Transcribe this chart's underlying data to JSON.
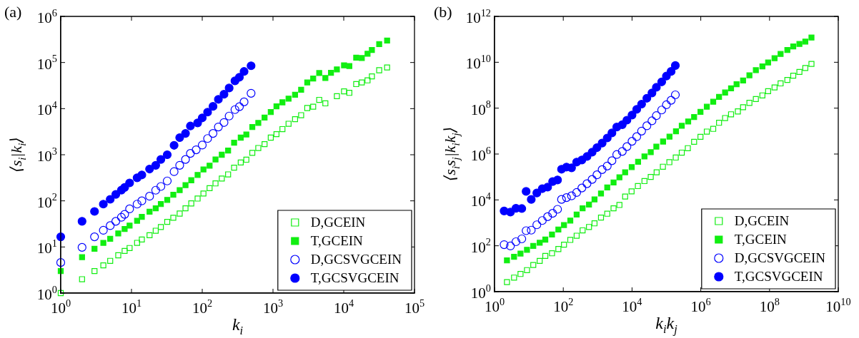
{
  "chart_data": [
    {
      "type": "scatter",
      "title": "(a)",
      "xlabel": "k$_{i}$",
      "ylabel": "⟨s$_{i}$|k$_{i}$⟩",
      "log": "xy",
      "grid": false,
      "legend": "bottom right",
      "xlim": [
        1,
        100000
      ],
      "ylim": [
        1,
        1000000
      ],
      "xticks": [
        {
          "value": 1,
          "label": "10$^{0}$"
        },
        {
          "value": 10,
          "label": "10$^{1}$"
        },
        {
          "value": 100,
          "label": "10$^{2}$"
        },
        {
          "value": 1000,
          "label": "10$^{3}$"
        },
        {
          "value": 10000,
          "label": "10$^{4}$"
        },
        {
          "value": 100000,
          "label": "10$^{5}$"
        }
      ],
      "yticks": [
        {
          "value": 1,
          "label": "10$^{0}$"
        },
        {
          "value": 10,
          "label": "10$^{1}$"
        },
        {
          "value": 100,
          "label": "10$^{2}$"
        },
        {
          "value": 1000,
          "label": "10$^{3}$"
        },
        {
          "value": 10000,
          "label": "10$^{4}$"
        },
        {
          "value": 100000,
          "label": "10$^{5}$"
        },
        {
          "value": 1000000,
          "label": "10$^{6}$"
        }
      ],
      "series": [
        {
          "name": "D,GCEIN",
          "color": "#11ee11",
          "marker": "square",
          "x": [
            1,
            2,
            3,
            4,
            5,
            6.5,
            8,
            9.4,
            12,
            14,
            18,
            22,
            26,
            32,
            39,
            48,
            58,
            70,
            86,
            104,
            127,
            154,
            189,
            232,
            282,
            350,
            420,
            510,
            620,
            760,
            930,
            1120,
            1360,
            1660,
            2050,
            2500,
            3050,
            3700,
            4500,
            5500,
            8000,
            10100,
            12000,
            15000,
            18000,
            21700,
            25000,
            31700,
            41000
          ],
          "values": [
            1,
            2,
            3,
            4,
            5,
            6.6,
            8.2,
            9.5,
            12.3,
            14.5,
            18,
            22.5,
            27,
            35,
            43,
            53,
            69,
            88,
            112,
            144,
            188,
            239,
            305,
            375,
            525,
            680,
            780,
            1100,
            1400,
            1700,
            2350,
            2800,
            3600,
            4700,
            5900,
            7200,
            10300,
            11000,
            15500,
            13000,
            18600,
            23700,
            22000,
            34000,
            37000,
            41000,
            50000,
            68000,
            78000
          ]
        },
        {
          "name": "T,GCEIN",
          "color": "#11ee11",
          "marker": "square",
          "x": [
            1,
            2,
            3,
            4,
            5,
            6.5,
            8,
            9.4,
            12,
            14,
            18,
            22,
            26,
            32,
            39,
            48,
            58,
            70,
            86,
            104,
            127,
            154,
            189,
            232,
            282,
            350,
            420,
            510,
            620,
            760,
            930,
            1120,
            1360,
            1660,
            2050,
            2500,
            3050,
            3700,
            4500,
            5500,
            6600,
            8000,
            10100,
            12000,
            15000,
            18000,
            21700,
            25000,
            31700,
            41000
          ],
          "values": [
            3,
            6,
            9.1,
            12.3,
            15,
            19.6,
            24.5,
            29,
            37,
            45,
            58,
            69,
            85,
            105,
            135,
            171,
            219,
            280,
            365,
            480,
            580,
            790,
            1000,
            1230,
            1830,
            2350,
            2750,
            4000,
            4900,
            6400,
            8400,
            11200,
            13700,
            16500,
            20000,
            25700,
            37000,
            45000,
            59000,
            46000,
            60000,
            71000,
            87000,
            84000,
            127000,
            125000,
            155000,
            187000,
            250000,
            300000
          ]
        },
        {
          "name": "D,GCSVGCEIN",
          "color": "#0000ff",
          "marker": "circle",
          "x": [
            1,
            2,
            3,
            4,
            5,
            6,
            7.2,
            8,
            9.4,
            12,
            14,
            18,
            22,
            26,
            32,
            40,
            48,
            58,
            68,
            82,
            100,
            119,
            142,
            169,
            203,
            240,
            290,
            335,
            390,
            490
          ],
          "values": [
            4.6,
            9.8,
            16.6,
            23,
            29,
            36,
            44,
            51,
            67,
            85,
            100,
            126,
            170,
            205,
            270,
            430,
            590,
            790,
            1070,
            1280,
            1620,
            2250,
            2900,
            4000,
            5000,
            6900,
            9500,
            11000,
            14000,
            21500
          ]
        },
        {
          "name": "T,GCSVGCEIN",
          "color": "#0000ff",
          "marker": "circle",
          "x": [
            1,
            2,
            3,
            4,
            5,
            6,
            7.2,
            8,
            9.4,
            12,
            14,
            18,
            22,
            26,
            32,
            40,
            48,
            58,
            68,
            86,
            100,
            119,
            142,
            169,
            203,
            240,
            290,
            335,
            390,
            490
          ],
          "values": [
            16.6,
            36,
            59,
            85,
            108,
            138,
            171,
            195,
            245,
            316,
            365,
            490,
            590,
            790,
            1000,
            1600,
            2350,
            2900,
            4200,
            4900,
            6300,
            8400,
            11200,
            15900,
            20500,
            28000,
            40000,
            48000,
            64000,
            85000
          ]
        }
      ]
    },
    {
      "type": "scatter",
      "title": "(b)",
      "xlabel": "k$_{i}$k$_{j}$",
      "ylabel": "⟨s$_{i}$s$_{j}$|k$_{i}$k$_{j}$⟩",
      "log": "xy",
      "grid": false,
      "legend": "bottom right",
      "xlim": [
        1,
        10000000000
      ],
      "ylim": [
        1,
        1000000000000
      ],
      "xticks": [
        {
          "value": 1,
          "label": "10$^{0}$"
        },
        {
          "value": 100,
          "label": "10$^{2}$"
        },
        {
          "value": 10000,
          "label": "10$^{4}$"
        },
        {
          "value": 1000000,
          "label": "10$^{6}$"
        },
        {
          "value": 100000000,
          "label": "10$^{8}$"
        },
        {
          "value": 10000000000,
          "label": "10$^{10}$"
        }
      ],
      "yticks": [
        {
          "value": 1,
          "label": "10$^{0}$"
        },
        {
          "value": 100,
          "label": "10$^{2}$"
        },
        {
          "value": 10000,
          "label": "10$^{4}$"
        },
        {
          "value": 1000000,
          "label": "10$^{6}$"
        },
        {
          "value": 100000000,
          "label": "10$^{8}$"
        },
        {
          "value": 10000000000,
          "label": "10$^{10}$"
        },
        {
          "value": 1000000000000,
          "label": "10$^{12}$"
        }
      ],
      "series": [
        {
          "name": "D,GCEIN",
          "color": "#11ee11",
          "marker": "square",
          "x": [
            2.3,
            3.7,
            5.7,
            8.8,
            13.4,
            20.6,
            30,
            47,
            72,
            105,
            160,
            245,
            365,
            560,
            810,
            1250,
            1900,
            2900,
            4300,
            6300,
            9700,
            14800,
            23000,
            35000,
            52000,
            79000,
            122000,
            187000,
            280000,
            420000,
            640000,
            980000,
            1500000,
            2300000,
            3400000,
            5100000,
            7600000,
            12000000,
            17000000,
            26000000,
            40000000,
            62000000,
            91000000,
            140000000,
            210000000,
            330000000,
            490000000,
            740000000,
            1100000000,
            1660000000
          ],
          "values": [
            2.6,
            4.1,
            5.9,
            8.7,
            14.5,
            22,
            36,
            47,
            72,
            112,
            180,
            275,
            470,
            660,
            950,
            1700,
            2500,
            4300,
            6000,
            14000,
            23500,
            40000,
            66000,
            100000,
            160000,
            280000,
            440000,
            700000,
            1150000,
            1800000,
            3400000,
            5600000,
            9500000,
            12500000,
            23000000,
            37000000,
            54000000,
            72000000,
            110000000,
            170000000,
            250000000,
            360000000,
            550000000,
            800000000,
            1200000000,
            1700000000,
            2600000000,
            3800000000,
            5600000000,
            8500000000
          ]
        },
        {
          "name": "T,GCEIN",
          "color": "#11ee11",
          "marker": "square",
          "x": [
            2.3,
            3.7,
            5.7,
            8.8,
            13.4,
            20.6,
            30,
            47,
            72,
            105,
            160,
            245,
            365,
            560,
            810,
            1250,
            1900,
            2900,
            4300,
            6300,
            9800,
            15000,
            23000,
            35000,
            51000,
            80000,
            123000,
            190000,
            280000,
            430000,
            640000,
            980000,
            1500000,
            2300000,
            3400000,
            5100000,
            7600000,
            11000000,
            17000000,
            26000000,
            40000000,
            62000000,
            91000000,
            140000000,
            210000000,
            330000000,
            490000000,
            740000000,
            1100000000,
            1660000000
          ],
          "values": [
            23,
            33,
            46,
            67,
            98,
            135,
            186,
            310,
            515,
            800,
            1260,
            2300,
            4300,
            6300,
            10500,
            19000,
            35000,
            58000,
            96000,
            160000,
            270000,
            460000,
            780000,
            1200000,
            2100000,
            3500000,
            5700000,
            9800000,
            17000000,
            26000000,
            41000000,
            69000000,
            115000000,
            190000000,
            310000000,
            480000000,
            730000000,
            1100000000,
            1600000000,
            2700000000,
            4500000000,
            6600000000,
            9800000000,
            15000000000,
            23000000000,
            34000000000,
            49000000000,
            63000000000,
            80000000000,
            120000000000
          ]
        },
        {
          "name": "D,GCSVGCEIN",
          "color": "#0000ff",
          "marker": "circle",
          "x": [
            1.9,
            2.9,
            4.2,
            6.2,
            8.3,
            11.7,
            17,
            24.5,
            35,
            49,
            68,
            89,
            124,
            174,
            245,
            347,
            490,
            690,
            955,
            1350,
            1900,
            2600,
            3600,
            5200,
            7100,
            10000,
            13700,
            19000,
            27000,
            38000,
            51000,
            73000,
            100000,
            137000,
            182000
          ],
          "values": [
            112,
            98,
            150,
            200,
            455,
            480,
            820,
            1260,
            1850,
            2600,
            3900,
            10500,
            12600,
            15000,
            21000,
            33000,
            51000,
            78000,
            124000,
            209000,
            300000,
            510000,
            950000,
            1300000,
            2100000,
            3600000,
            5700000,
            10000000,
            17000000,
            28000000,
            47000000,
            83000000,
            140000000,
            220000000,
            380000000
          ]
        },
        {
          "name": "T,GCSVGCEIN",
          "color": "#0000ff",
          "marker": "circle",
          "x": [
            1.9,
            2.9,
            4.2,
            6.2,
            8.3,
            11.7,
            17,
            24.5,
            35,
            49,
            68,
            89,
            124,
            174,
            245,
            347,
            490,
            690,
            955,
            1350,
            1900,
            2600,
            3600,
            5200,
            7100,
            10000,
            13700,
            19000,
            27000,
            38000,
            51000,
            73000,
            100000,
            137000,
            182000
          ],
          "values": [
            3300,
            2950,
            4300,
            4200,
            23500,
            10500,
            20000,
            31000,
            36000,
            63000,
            74000,
            218000,
            270000,
            250000,
            445000,
            550000,
            780000,
            1200000,
            1900000,
            3000000,
            5000000,
            8300000,
            15000000,
            19000000,
            30000000,
            50000000,
            89000000,
            150000000,
            270000000,
            460000000,
            810000000,
            1400000000,
            2500000000,
            4000000000,
            7200000000
          ]
        }
      ]
    }
  ]
}
